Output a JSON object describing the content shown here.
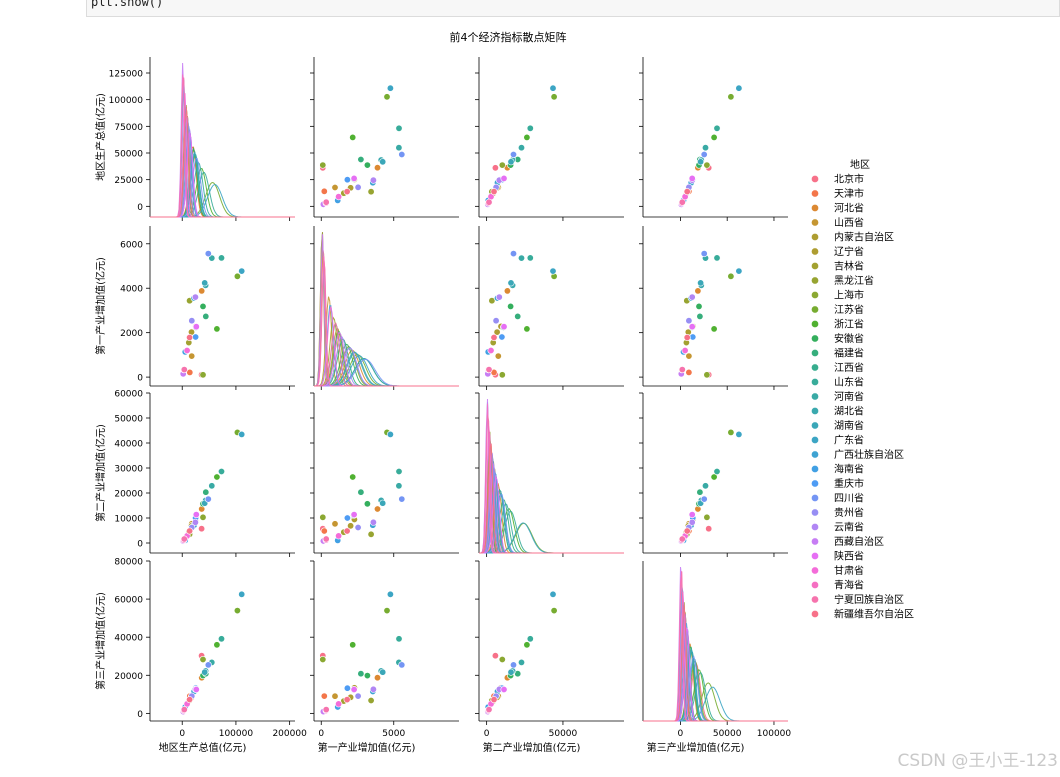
{
  "code": {
    "text": "plt.show()"
  },
  "watermark": "CSDN @王小王-123",
  "chart_data": {
    "type": "scatter",
    "subtype": "pairplot",
    "title": "前4个经济指标散点矩阵",
    "diagonal": "kde",
    "variables": [
      "地区生产总值(亿元)",
      "第一产业增加值(亿元)",
      "第二产业增加值(亿元)",
      "第三产业增加值(亿元)"
    ],
    "ylabels": [
      "地区生产总值(亿元)",
      "第一产业增加值(亿元)",
      "第二产业增加值(亿元)",
      "第三产业增加值(亿元)"
    ],
    "xlabels": [
      "地区生产总值(亿元)",
      "第一产业增加值(亿元)",
      "第二产业增加值(亿元)",
      "第三产业增加值(亿元)"
    ],
    "ranges": [
      [
        -10000,
        140000
      ],
      [
        -400,
        6800
      ],
      [
        -4000,
        60000
      ],
      [
        -4000,
        80000
      ]
    ],
    "xranges": [
      [
        -60000,
        210000
      ],
      [
        -500,
        9500
      ],
      [
        -5000,
        90000
      ],
      [
        -40000,
        115000
      ]
    ],
    "yticks": [
      [
        0,
        25000,
        50000,
        75000,
        100000,
        125000
      ],
      [
        0,
        2000,
        4000,
        6000
      ],
      [
        0,
        10000,
        20000,
        30000,
        40000,
        50000,
        60000
      ],
      [
        0,
        20000,
        40000,
        60000,
        80000
      ]
    ],
    "xticks": [
      [
        0,
        100000,
        200000
      ],
      [
        0,
        5000
      ],
      [
        0,
        50000
      ],
      [
        0,
        50000,
        100000
      ]
    ],
    "legend": {
      "title": "地区",
      "position": "right",
      "labels": [
        "北京市",
        "天津市",
        "河北省",
        "山西省",
        "内蒙古自治区",
        "辽宁省",
        "吉林省",
        "黑龙江省",
        "上海市",
        "江苏省",
        "浙江省",
        "安徽省",
        "福建省",
        "江西省",
        "山东省",
        "河南省",
        "湖北省",
        "湖南省",
        "广东省",
        "广西壮族自治区",
        "海南省",
        "重庆市",
        "四川省",
        "贵州省",
        "云南省",
        "西藏自治区",
        "陕西省",
        "甘肃省",
        "青海省",
        "宁夏回族自治区",
        "新疆维吾尔自治区"
      ],
      "colors": [
        "#f77189",
        "#f3764a",
        "#dc8932",
        "#c59632",
        "#ae9d31",
        "#ae9d31",
        "#a3a131",
        "#97a431",
        "#8ba832",
        "#77ac31",
        "#50b131",
        "#34af5d",
        "#36ae7c",
        "#37ad8e",
        "#38ac9a",
        "#39aaa5",
        "#3aa9ae",
        "#3ba7b8",
        "#3ca5c4",
        "#3ea3d2",
        "#41a0e4",
        "#4e9cf4",
        "#7495f4",
        "#978ef4",
        "#b186f4",
        "#c77df4",
        "#e66ff4",
        "#f46cd9",
        "#f56fc2",
        "#f673ad",
        "#f77189"
      ]
    },
    "series": [
      {
        "name": "北京市",
        "gdp": 36103,
        "p1": 108,
        "p2": 5716,
        "p3": 30279
      },
      {
        "name": "天津市",
        "gdp": 14084,
        "p1": 210,
        "p2": 4804,
        "p3": 9070
      },
      {
        "name": "河北省",
        "gdp": 36207,
        "p1": 3880,
        "p2": 13597,
        "p3": 18730
      },
      {
        "name": "山西省",
        "gdp": 17652,
        "p1": 946,
        "p2": 7675,
        "p3": 9031
      },
      {
        "name": "内蒙古自治区",
        "gdp": 17360,
        "p1": 2025,
        "p2": 6868,
        "p3": 8467
      },
      {
        "name": "辽宁省",
        "gdp": 25115,
        "p1": 2284,
        "p2": 9400,
        "p3": 13431
      },
      {
        "name": "吉林省",
        "gdp": 12311,
        "p1": 1553,
        "p2": 4326,
        "p3": 6432
      },
      {
        "name": "黑龙江省",
        "gdp": 13698,
        "p1": 3438,
        "p2": 3483,
        "p3": 6777
      },
      {
        "name": "上海市",
        "gdp": 38701,
        "p1": 104,
        "p2": 10289,
        "p3": 28307
      },
      {
        "name": "江苏省",
        "gdp": 102719,
        "p1": 4536,
        "p2": 44226,
        "p3": 53955
      },
      {
        "name": "浙江省",
        "gdp": 64613,
        "p1": 2169,
        "p2": 26413,
        "p3": 36031
      },
      {
        "name": "安徽省",
        "gdp": 38681,
        "p1": 3184,
        "p2": 15672,
        "p3": 19824
      },
      {
        "name": "福建省",
        "gdp": 43904,
        "p1": 2732,
        "p2": 20328,
        "p3": 20844
      },
      {
        "name": "江西省",
        "gdp": 25692,
        "p1": 2241,
        "p2": 11084,
        "p3": 12367
      },
      {
        "name": "山东省",
        "gdp": 73129,
        "p1": 5363,
        "p2": 28612,
        "p3": 39154
      },
      {
        "name": "河南省",
        "gdp": 54997,
        "p1": 5354,
        "p2": 22875,
        "p3": 26768
      },
      {
        "name": "湖北省",
        "gdp": 43443,
        "p1": 4132,
        "p2": 17023,
        "p3": 22288
      },
      {
        "name": "湖南省",
        "gdp": 41782,
        "p1": 4240,
        "p2": 15938,
        "p3": 21603
      },
      {
        "name": "广东省",
        "gdp": 110761,
        "p1": 4770,
        "p2": 43450,
        "p3": 62541
      },
      {
        "name": "广西壮族自治区",
        "gdp": 22157,
        "p1": 3556,
        "p2": 7109,
        "p3": 11492
      },
      {
        "name": "海南省",
        "gdp": 5532,
        "p1": 1136,
        "p2": 1055,
        "p3": 3341
      },
      {
        "name": "重庆市",
        "gdp": 25003,
        "p1": 1804,
        "p2": 9992,
        "p3": 13207
      },
      {
        "name": "四川省",
        "gdp": 48599,
        "p1": 5557,
        "p2": 17571,
        "p3": 25471
      },
      {
        "name": "贵州省",
        "gdp": 17827,
        "p1": 2540,
        "p2": 6211,
        "p3": 9075
      },
      {
        "name": "云南省",
        "gdp": 24522,
        "p1": 3599,
        "p2": 8288,
        "p3": 12635
      },
      {
        "name": "西藏自治区",
        "gdp": 1903,
        "p1": 151,
        "p2": 798,
        "p3": 954
      },
      {
        "name": "陕西省",
        "gdp": 26182,
        "p1": 2267,
        "p2": 11363,
        "p3": 12552
      },
      {
        "name": "甘肃省",
        "gdp": 9017,
        "p1": 1198,
        "p2": 2852,
        "p3": 4967
      },
      {
        "name": "青海省",
        "gdp": 3006,
        "p1": 334,
        "p2": 1144,
        "p3": 1528
      },
      {
        "name": "宁夏回族自治区",
        "gdp": 3921,
        "p1": 339,
        "p2": 1584,
        "p3": 1998
      },
      {
        "name": "新疆维吾尔自治区",
        "gdp": 13798,
        "p1": 1781,
        "p2": 4796,
        "p3": 7221
      }
    ]
  }
}
